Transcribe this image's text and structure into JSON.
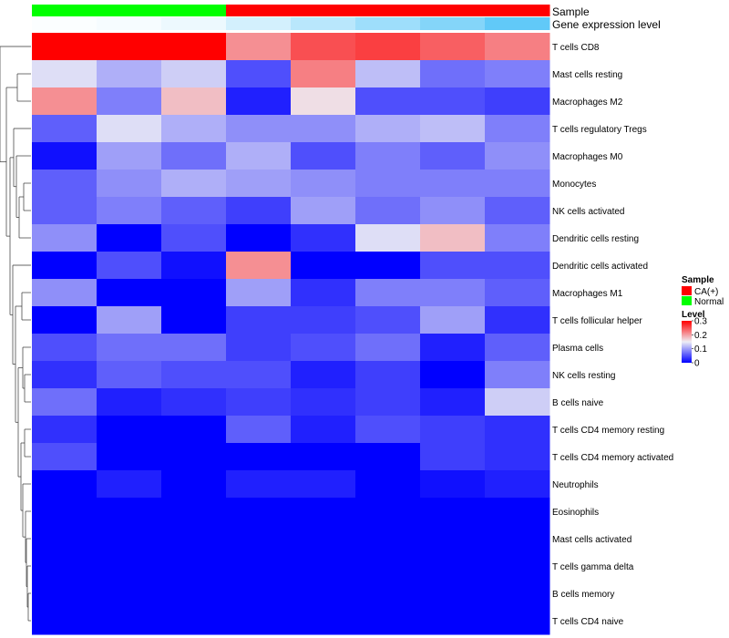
{
  "chart_data": {
    "type": "heatmap",
    "columns": 8,
    "rows": [
      "T cells CD8",
      "Mast cells resting",
      "Macrophages M2",
      "T cells regulatory  Tregs",
      "Macrophages M0",
      "Monocytes",
      "NK cells activated",
      "Dendritic cells resting",
      "Dendritic cells activated",
      "Macrophages M1",
      "T cells follicular helper",
      "Plasma cells",
      "NK cells resting",
      "B cells naive",
      "T cells CD4 memory resting",
      "T cells CD4 memory activated",
      "Neutrophils",
      "Eosinophils",
      "Mast cells activated",
      "T cells gamma delta",
      "B cells memory",
      "T cells CD4 naive"
    ],
    "values": [
      [
        0.3,
        0.3,
        0.3,
        0.21,
        0.25,
        0.26,
        0.24,
        0.22
      ],
      [
        0.14,
        0.11,
        0.13,
        0.05,
        0.22,
        0.12,
        0.07,
        0.08
      ],
      [
        0.21,
        0.08,
        0.18,
        0.02,
        0.16,
        0.05,
        0.05,
        0.04
      ],
      [
        0.06,
        0.14,
        0.11,
        0.09,
        0.09,
        0.11,
        0.12,
        0.08
      ],
      [
        0.01,
        0.1,
        0.07,
        0.11,
        0.05,
        0.08,
        0.06,
        0.09
      ],
      [
        0.06,
        0.09,
        0.11,
        0.1,
        0.09,
        0.08,
        0.08,
        0.08
      ],
      [
        0.06,
        0.08,
        0.06,
        0.04,
        0.1,
        0.07,
        0.09,
        0.06
      ],
      [
        0.09,
        0.0,
        0.05,
        0.0,
        0.03,
        0.14,
        0.18,
        0.08
      ],
      [
        0.0,
        0.05,
        0.01,
        0.21,
        0.0,
        0.0,
        0.05,
        0.05
      ],
      [
        0.09,
        0.0,
        0.0,
        0.1,
        0.03,
        0.08,
        0.08,
        0.06
      ],
      [
        0.0,
        0.1,
        0.0,
        0.04,
        0.04,
        0.05,
        0.1,
        0.03
      ],
      [
        0.05,
        0.07,
        0.07,
        0.04,
        0.05,
        0.07,
        0.02,
        0.06
      ],
      [
        0.03,
        0.06,
        0.05,
        0.05,
        0.02,
        0.04,
        0.0,
        0.08
      ],
      [
        0.07,
        0.02,
        0.03,
        0.04,
        0.03,
        0.04,
        0.02,
        0.13
      ],
      [
        0.03,
        0.0,
        0.0,
        0.06,
        0.02,
        0.05,
        0.04,
        0.03
      ],
      [
        0.05,
        0.0,
        0.0,
        0.0,
        0.0,
        0.0,
        0.04,
        0.03
      ],
      [
        0.0,
        0.02,
        0.0,
        0.02,
        0.02,
        0.0,
        0.01,
        0.02
      ],
      [
        0.0,
        0.0,
        0.0,
        0.0,
        0.0,
        0.0,
        0.0,
        0.0
      ],
      [
        0.0,
        0.0,
        0.0,
        0.0,
        0.0,
        0.0,
        0.0,
        0.0
      ],
      [
        0.0,
        0.0,
        0.0,
        0.0,
        0.0,
        0.0,
        0.0,
        0.0
      ],
      [
        0.0,
        0.0,
        0.0,
        0.0,
        0.0,
        0.0,
        0.0,
        0.0
      ],
      [
        0.0,
        0.0,
        0.0,
        0.0,
        0.0,
        0.0,
        0.0,
        0.0
      ]
    ],
    "color_range": [
      0,
      0.3
    ],
    "color_scale": {
      "low": "#0000ff",
      "mid": "#eeeef5",
      "high": "#ff0000"
    },
    "annotations": [
      {
        "name": "Sample",
        "groups": [
          "Normal",
          "Normal",
          "Normal",
          "CA(+)",
          "CA(+)",
          "CA(+)",
          "CA(+)",
          "CA(+)"
        ]
      },
      {
        "name": "Gene expression level",
        "values": [
          0.02,
          0.05,
          0.1,
          0.25,
          0.4,
          0.55,
          0.7,
          0.9
        ],
        "scale": {
          "low": "#ffffff",
          "high": "#4fc3f7"
        }
      }
    ],
    "legend": {
      "sample": {
        "title": "Sample",
        "items": [
          {
            "label": "CA(+)",
            "color": "#ff0000"
          },
          {
            "label": "Normal",
            "color": "#00ff00"
          }
        ]
      },
      "level": {
        "title": "Level",
        "ticks": [
          "0.3",
          "0.2",
          "0.1",
          "0"
        ],
        "tick_values": [
          0.3,
          0.2,
          0.1,
          0
        ]
      }
    },
    "dendrogram": "rows",
    "title": "",
    "xlabel": "",
    "ylabel": ""
  }
}
